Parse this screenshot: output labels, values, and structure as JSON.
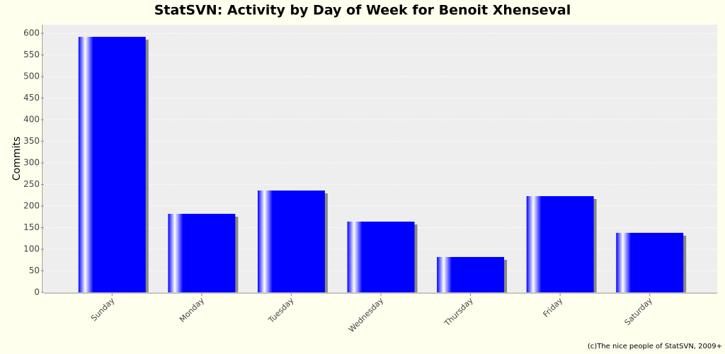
{
  "chart_data": {
    "type": "bar",
    "title": "StatSVN: Activity by Day of Week for Benoit Xhenseval",
    "y_label": "Commits",
    "categories": [
      "Sunday",
      "Monday",
      "Tuesday",
      "Wednesday",
      "Thursday",
      "Friday",
      "Saturday"
    ],
    "values": [
      592,
      182,
      236,
      164,
      82,
      223,
      138
    ],
    "color": "#0000ff",
    "ylim": [
      0,
      620
    ],
    "yticks": [
      0,
      50,
      100,
      150,
      200,
      250,
      300,
      350,
      400,
      450,
      500,
      550,
      600
    ],
    "grid": true,
    "footer": "(c)The nice people of StatSVN, 2009+"
  }
}
